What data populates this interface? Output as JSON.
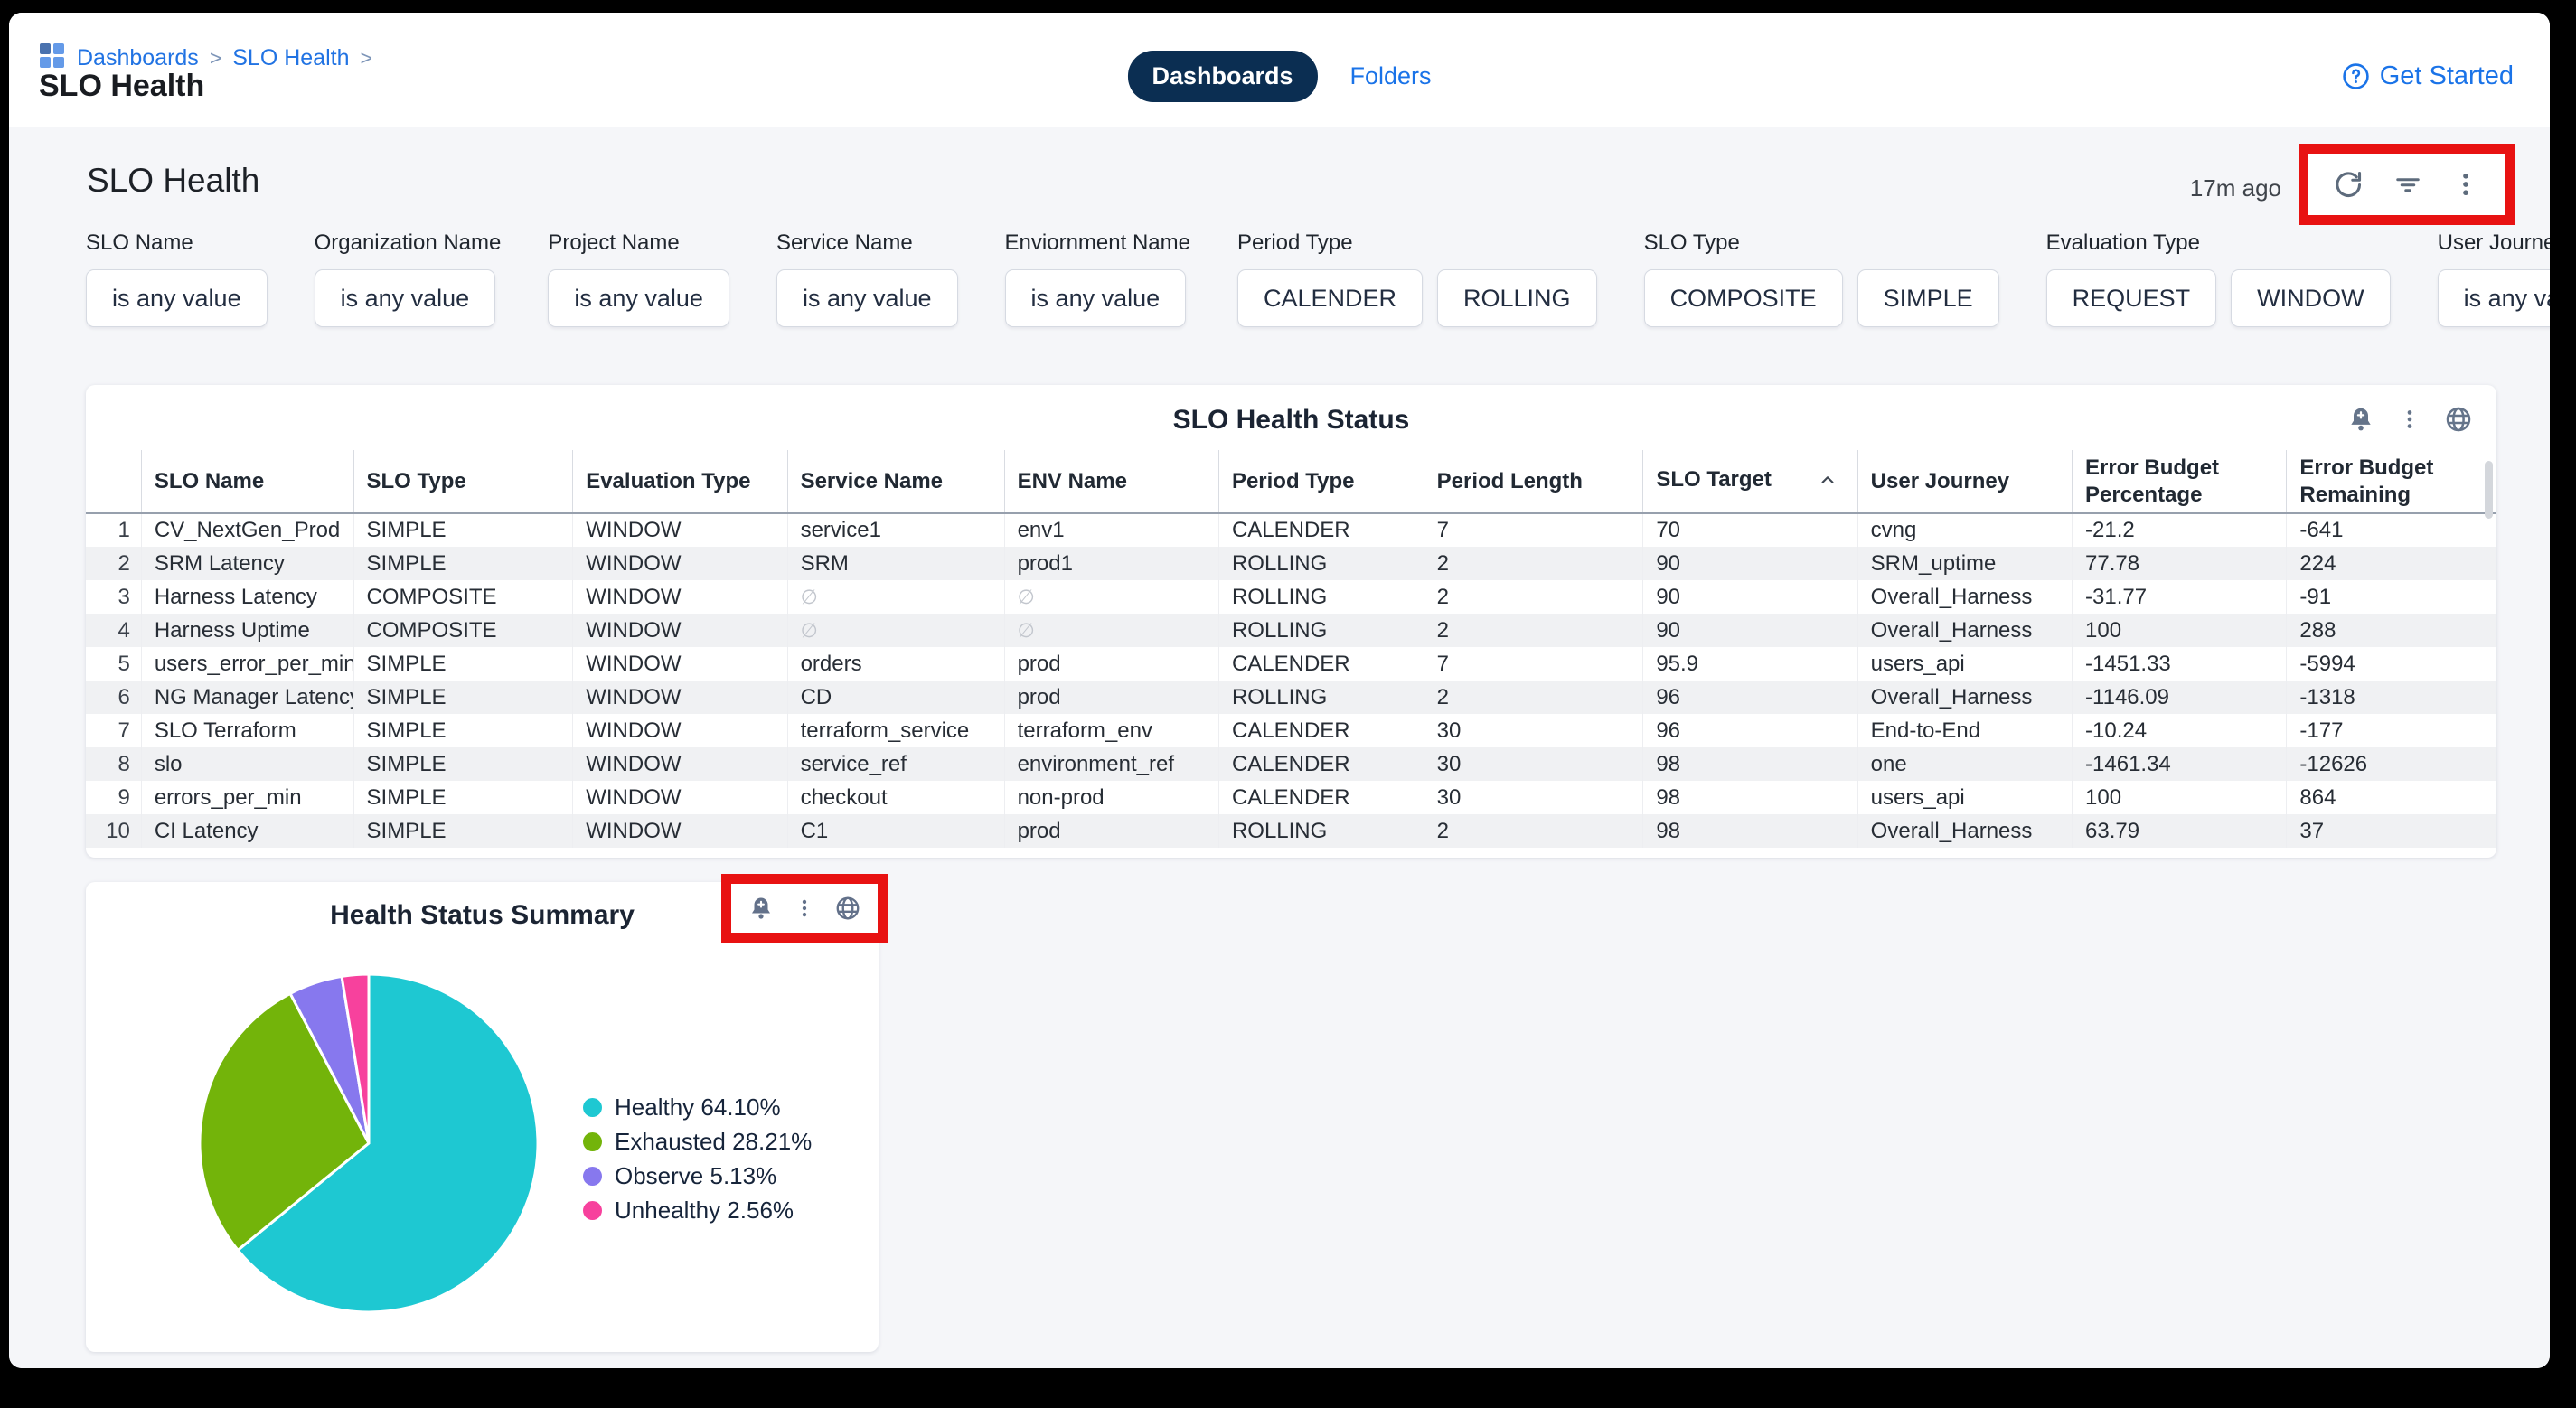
{
  "topbar": {
    "breadcrumb": {
      "icon": "dashboards-grid-icon",
      "items": [
        "Dashboards",
        "SLO Health"
      ]
    },
    "page_title": "SLO Health",
    "tabs": [
      {
        "label": "Dashboards",
        "active": true
      },
      {
        "label": "Folders",
        "active": false
      }
    ],
    "get_started": {
      "icon": "help-circle-icon",
      "label": "Get Started"
    }
  },
  "dashboard": {
    "title": "SLO Health",
    "last_refreshed": "17m ago",
    "toolbar_icons": [
      "refresh-icon",
      "filter-icon",
      "kebab-menu-icon"
    ]
  },
  "filters": [
    {
      "label": "SLO Name",
      "chips": [
        "is any value"
      ]
    },
    {
      "label": "Organization Name",
      "chips": [
        "is any value"
      ]
    },
    {
      "label": "Project Name",
      "chips": [
        "is any value"
      ]
    },
    {
      "label": "Service Name",
      "chips": [
        "is any value"
      ]
    },
    {
      "label": "Enviornment Name",
      "chips": [
        "is any value"
      ]
    },
    {
      "label": "Period Type",
      "chips": [
        "CALENDER",
        "ROLLING"
      ]
    },
    {
      "label": "SLO Type",
      "chips": [
        "COMPOSITE",
        "SIMPLE"
      ]
    },
    {
      "label": "Evaluation Type",
      "chips": [
        "REQUEST",
        "WINDOW"
      ]
    },
    {
      "label": "User Journey",
      "chips": [
        "is any value"
      ]
    }
  ],
  "table": {
    "title": "SLO Health Status",
    "card_icons": [
      "bell-plus-icon",
      "kebab-menu-icon",
      "globe-icon"
    ],
    "null_marker": "∅",
    "sort": {
      "column": "SLO Target",
      "direction": "asc"
    },
    "columns": [
      {
        "label": "",
        "width": 2.3
      },
      {
        "label": "SLO Name",
        "width": 8.8
      },
      {
        "label": "SLO Type",
        "width": 9.1
      },
      {
        "label": "Evaluation Type",
        "width": 8.9
      },
      {
        "label": "Service Name",
        "width": 9.0
      },
      {
        "label": "ENV Name",
        "width": 8.9
      },
      {
        "label": "Period Type",
        "width": 8.5
      },
      {
        "label": "Period Length",
        "width": 9.1
      },
      {
        "label": "SLO Target",
        "width": 8.9,
        "sort": "asc"
      },
      {
        "label": "User Journey",
        "width": 8.9
      },
      {
        "label": "Error Budget\nPercentage",
        "width": 8.9
      },
      {
        "label": "Error Budget\nRemaining",
        "width": 8.7
      }
    ],
    "rows": [
      [
        "1",
        "CV_NextGen_Prod",
        "SIMPLE",
        "WINDOW",
        "service1",
        "env1",
        "CALENDER",
        "7",
        "70",
        "cvng",
        "-21.2",
        "-641"
      ],
      [
        "2",
        "SRM Latency",
        "SIMPLE",
        "WINDOW",
        "SRM",
        "prod1",
        "ROLLING",
        "2",
        "90",
        "SRM_uptime",
        "77.78",
        "224"
      ],
      [
        "3",
        "Harness Latency",
        "COMPOSITE",
        "WINDOW",
        "∅",
        "∅",
        "ROLLING",
        "2",
        "90",
        "Overall_Harness",
        "-31.77",
        "-91"
      ],
      [
        "4",
        "Harness Uptime",
        "COMPOSITE",
        "WINDOW",
        "∅",
        "∅",
        "ROLLING",
        "2",
        "90",
        "Overall_Harness",
        "100",
        "288"
      ],
      [
        "5",
        "users_error_per_min",
        "SIMPLE",
        "WINDOW",
        "orders",
        "prod",
        "CALENDER",
        "7",
        "95.9",
        "users_api",
        "-1451.33",
        "-5994"
      ],
      [
        "6",
        "NG Manager Latency",
        "SIMPLE",
        "WINDOW",
        "CD",
        "prod",
        "ROLLING",
        "2",
        "96",
        "Overall_Harness",
        "-1146.09",
        "-1318"
      ],
      [
        "7",
        "SLO Terraform",
        "SIMPLE",
        "WINDOW",
        "terraform_service",
        "terraform_env",
        "CALENDER",
        "30",
        "96",
        "End-to-End",
        "-10.24",
        "-177"
      ],
      [
        "8",
        "slo",
        "SIMPLE",
        "WINDOW",
        "service_ref",
        "environment_ref",
        "CALENDER",
        "30",
        "98",
        "one",
        "-1461.34",
        "-12626"
      ],
      [
        "9",
        "errors_per_min",
        "SIMPLE",
        "WINDOW",
        "checkout",
        "non-prod",
        "CALENDER",
        "30",
        "98",
        "users_api",
        "100",
        "864"
      ],
      [
        "10",
        "CI Latency",
        "SIMPLE",
        "WINDOW",
        "C1",
        "prod",
        "ROLLING",
        "2",
        "98",
        "Overall_Harness",
        "63.79",
        "37"
      ]
    ]
  },
  "pie_card": {
    "title": "Health Status Summary",
    "card_icons": [
      "bell-plus-icon",
      "kebab-menu-icon",
      "globe-icon"
    ]
  },
  "chart_data": {
    "type": "pie",
    "title": "Health Status Summary",
    "labels": [
      "Healthy",
      "Exhausted",
      "Observe",
      "Unhealthy"
    ],
    "values": [
      64.1,
      28.21,
      5.13,
      2.56
    ],
    "colors": [
      "#1ec8d2",
      "#73b40a",
      "#8778ee",
      "#f7419d"
    ],
    "legend_position": "right",
    "start_angle_deg": 0,
    "direction": "clockwise"
  },
  "annotations": {
    "highlight_color": "#e81212",
    "boxes": [
      "dashboard-toolbar-highlight",
      "pie-card-icons-highlight"
    ]
  },
  "theme": {
    "link_blue": "#1a73e8",
    "active_tab_bg": "#0b2e52",
    "page_bg": "#f5f6f9",
    "icon_gray": "#5f6e83"
  }
}
